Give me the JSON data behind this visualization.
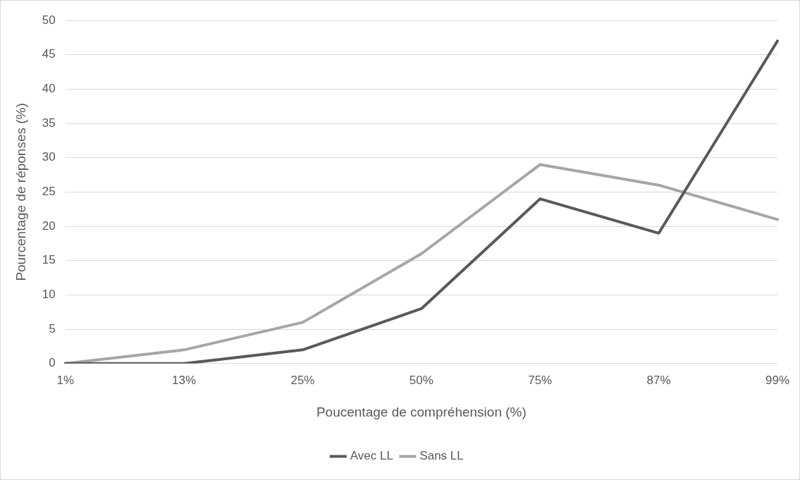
{
  "chart_data": {
    "type": "line",
    "xlabel": "Poucentage de compréhension (%)",
    "ylabel": "Pourcentage de réponses (%)",
    "categories": [
      "1%",
      "13%",
      "25%",
      "50%",
      "75%",
      "87%",
      "99%"
    ],
    "series": [
      {
        "name": "Avec LL",
        "color": "#595959",
        "values": [
          0,
          0,
          2,
          8,
          24,
          19,
          47
        ]
      },
      {
        "name": "Sans LL",
        "color": "#a6a6a6",
        "values": [
          0,
          2,
          6,
          16,
          29,
          26,
          21
        ]
      }
    ],
    "ylim": [
      0,
      50
    ],
    "yticks": [
      0,
      5,
      10,
      15,
      20,
      25,
      30,
      35,
      40,
      45,
      50
    ],
    "grid": "y",
    "legend": "bottom"
  }
}
